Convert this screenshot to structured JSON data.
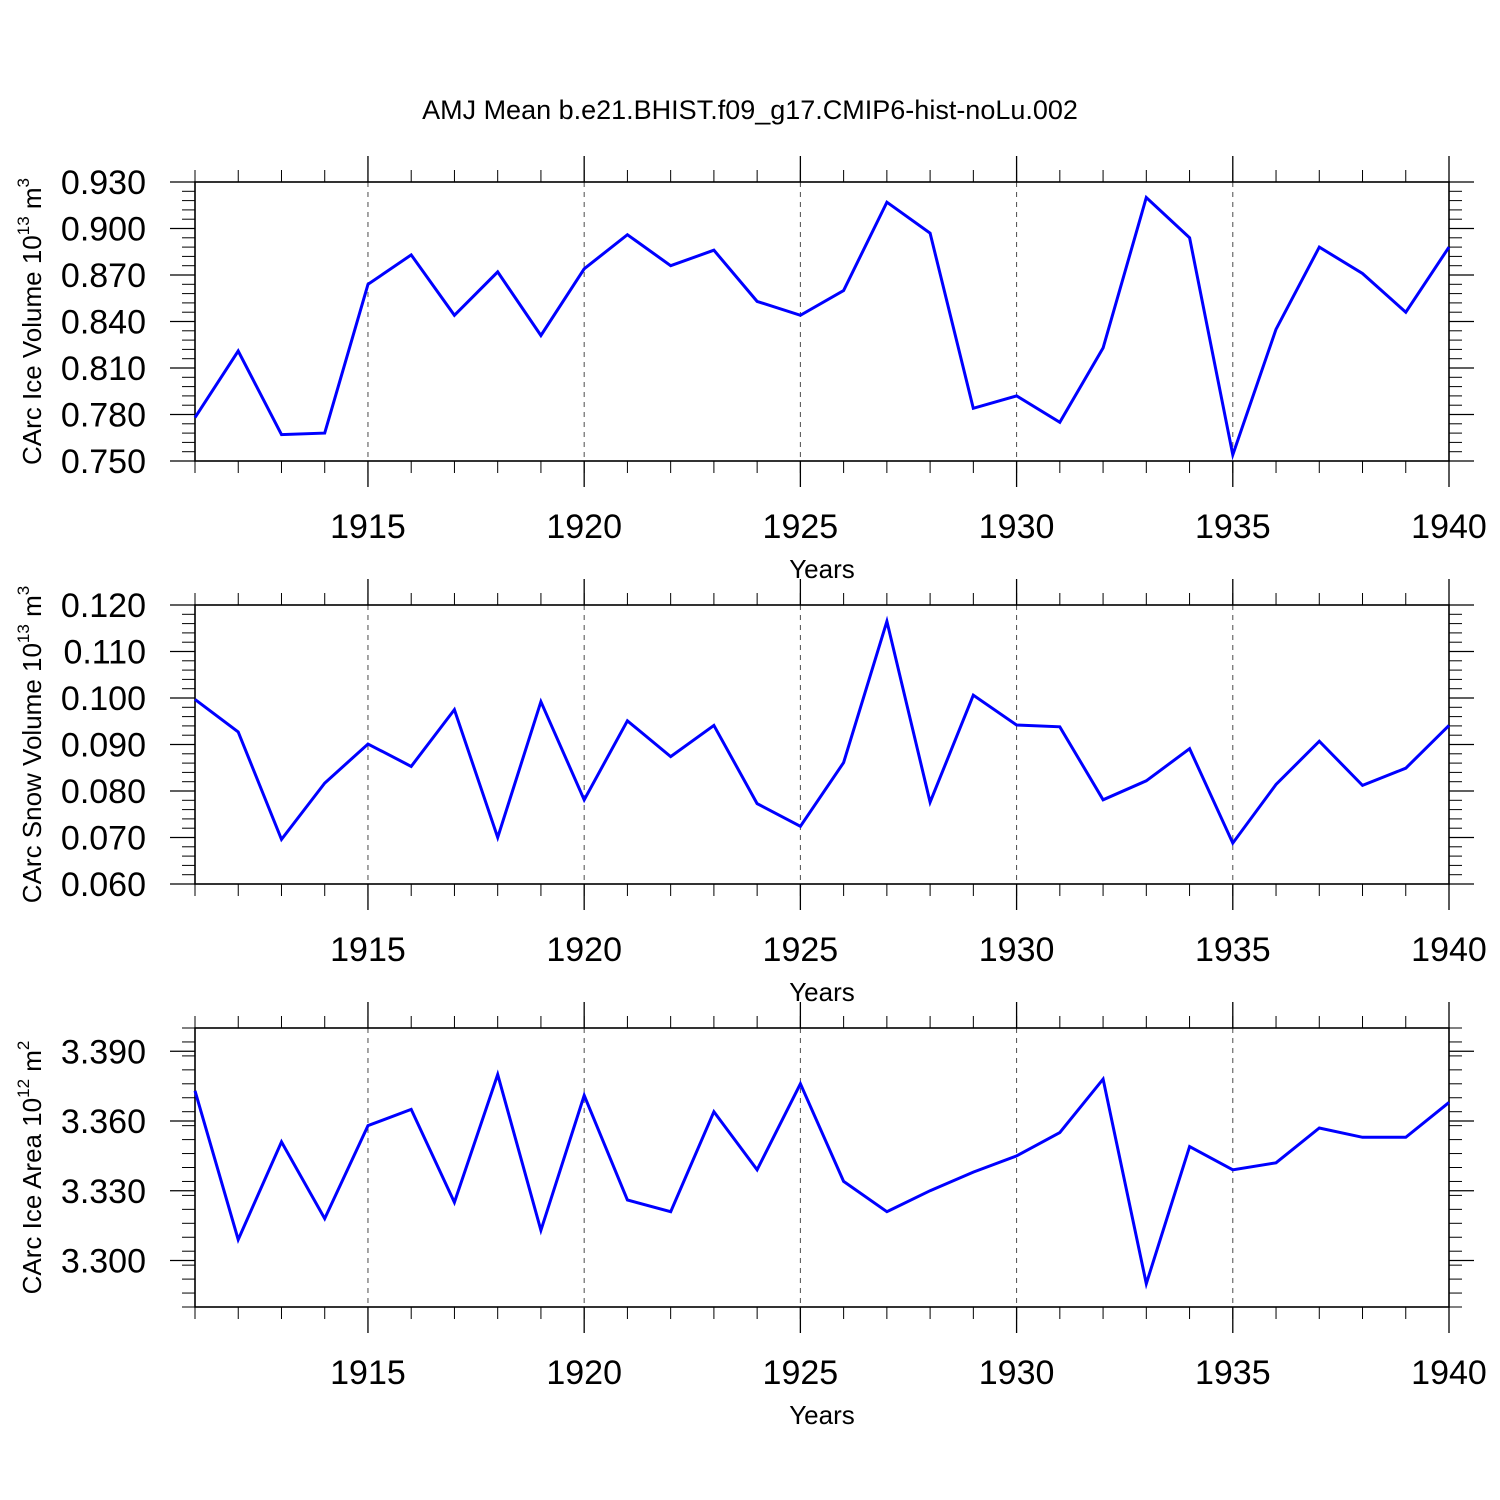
{
  "title": "AMJ Mean b.e21.BHIST.f09_g17.CMIP6-hist-noLu.002",
  "colors": {
    "line": "#0000ff",
    "axis": "#000000",
    "grid": "#000000"
  },
  "chart_data": [
    {
      "type": "line",
      "ylabel": "CArc Ice Volume",
      "ylabel_base": "10",
      "ylabel_exp": "13",
      "ylabel_unit": "m",
      "ylabel_unit_exp": "3",
      "xlabel": "Years",
      "xlim": [
        1911,
        1940
      ],
      "ylim": [
        0.75,
        0.93
      ],
      "yticks": [
        0.75,
        0.78,
        0.81,
        0.84,
        0.87,
        0.9,
        0.93
      ],
      "ytick_labels": [
        "0.750",
        "0.780",
        "0.810",
        "0.840",
        "0.870",
        "0.900",
        "0.930"
      ],
      "xticks": [
        1915,
        1920,
        1925,
        1930,
        1935,
        1940
      ],
      "xtick_labels": [
        "1915",
        "1920",
        "1925",
        "1930",
        "1935",
        "1940"
      ],
      "grid": "vertical dashed at major x ticks",
      "x": [
        1911,
        1912,
        1913,
        1914,
        1915,
        1916,
        1917,
        1918,
        1919,
        1920,
        1921,
        1922,
        1923,
        1924,
        1925,
        1926,
        1927,
        1928,
        1929,
        1930,
        1931,
        1932,
        1933,
        1934,
        1935,
        1936,
        1937,
        1938,
        1939,
        1940
      ],
      "series": [
        {
          "name": "CArc Ice Volume",
          "values": [
            0.778,
            0.821,
            0.767,
            0.768,
            0.864,
            0.883,
            0.844,
            0.872,
            0.831,
            0.874,
            0.896,
            0.876,
            0.886,
            0.853,
            0.844,
            0.86,
            0.917,
            0.897,
            0.784,
            0.792,
            0.775,
            0.823,
            0.92,
            0.894,
            0.754,
            0.835,
            0.888,
            0.871,
            0.846,
            0.888
          ]
        }
      ]
    },
    {
      "type": "line",
      "ylabel": "CArc Snow Volume",
      "ylabel_base": "10",
      "ylabel_exp": "13",
      "ylabel_unit": "m",
      "ylabel_unit_exp": "3",
      "xlabel": "Years",
      "xlim": [
        1911,
        1940
      ],
      "ylim": [
        0.06,
        0.12
      ],
      "yticks": [
        0.06,
        0.07,
        0.08,
        0.09,
        0.1,
        0.11,
        0.12
      ],
      "ytick_labels": [
        "0.060",
        "0.070",
        "0.080",
        "0.090",
        "0.100",
        "0.110",
        "0.120"
      ],
      "xticks": [
        1915,
        1920,
        1925,
        1930,
        1935,
        1940
      ],
      "xtick_labels": [
        "1915",
        "1920",
        "1925",
        "1930",
        "1935",
        "1940"
      ],
      "grid": "vertical dashed at major x ticks",
      "x": [
        1911,
        1912,
        1913,
        1914,
        1915,
        1916,
        1917,
        1918,
        1919,
        1920,
        1921,
        1922,
        1923,
        1924,
        1925,
        1926,
        1927,
        1928,
        1929,
        1930,
        1931,
        1932,
        1933,
        1934,
        1935,
        1936,
        1937,
        1938,
        1939,
        1940
      ],
      "series": [
        {
          "name": "CArc Snow Volume",
          "values": [
            0.0997,
            0.0927,
            0.0696,
            0.0817,
            0.0901,
            0.0853,
            0.0975,
            0.07,
            0.0992,
            0.0781,
            0.0951,
            0.0874,
            0.0941,
            0.0773,
            0.0724,
            0.0861,
            0.1165,
            0.0776,
            0.1006,
            0.0942,
            0.0938,
            0.0781,
            0.0822,
            0.0891,
            0.0688,
            0.0814,
            0.0907,
            0.0812,
            0.0849,
            0.0941
          ]
        }
      ]
    },
    {
      "type": "line",
      "ylabel": "CArc Ice Area",
      "ylabel_base": "10",
      "ylabel_exp": "12",
      "ylabel_unit": "m",
      "ylabel_unit_exp": "2",
      "xlabel": "Years",
      "xlim": [
        1911,
        1940
      ],
      "ylim": [
        3.28,
        3.4
      ],
      "yticks": [
        3.3,
        3.33,
        3.36,
        3.39
      ],
      "ytick_labels": [
        "3.300",
        "3.330",
        "3.360",
        "3.390"
      ],
      "xticks": [
        1915,
        1920,
        1925,
        1930,
        1935,
        1940
      ],
      "xtick_labels": [
        "1915",
        "1920",
        "1925",
        "1930",
        "1935",
        "1940"
      ],
      "grid": "vertical dashed at major x ticks",
      "x": [
        1911,
        1912,
        1913,
        1914,
        1915,
        1916,
        1917,
        1918,
        1919,
        1920,
        1921,
        1922,
        1923,
        1924,
        1925,
        1926,
        1927,
        1928,
        1929,
        1930,
        1931,
        1932,
        1933,
        1934,
        1935,
        1936,
        1937,
        1938,
        1939,
        1940
      ],
      "series": [
        {
          "name": "CArc Ice Area",
          "values": [
            3.373,
            3.309,
            3.351,
            3.318,
            3.358,
            3.365,
            3.325,
            3.38,
            3.313,
            3.371,
            3.326,
            3.321,
            3.364,
            3.339,
            3.376,
            3.334,
            3.321,
            3.33,
            3.338,
            3.345,
            3.355,
            3.378,
            3.29,
            3.349,
            3.339,
            3.342,
            3.357,
            3.353,
            3.353,
            3.368
          ]
        }
      ]
    }
  ]
}
